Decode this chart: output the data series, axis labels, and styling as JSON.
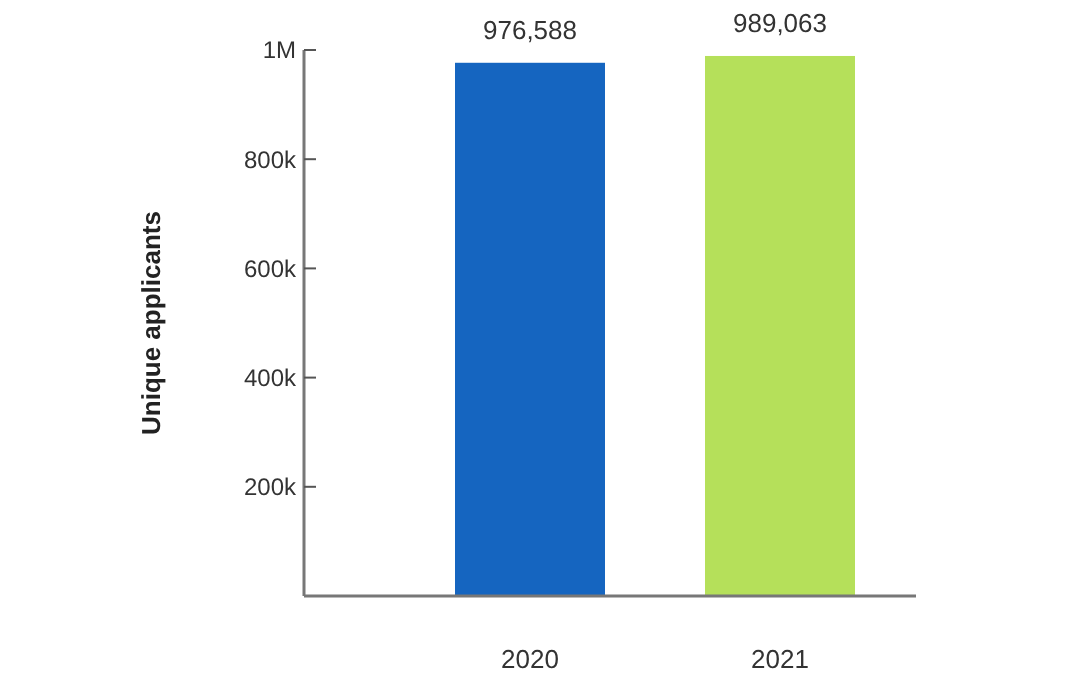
{
  "chart_data": {
    "type": "bar",
    "ylabel": "Unique applicants",
    "categories": [
      "2020",
      "2021"
    ],
    "values": [
      976588,
      989063
    ],
    "colors": [
      "#1565c0",
      "#b5e05a"
    ],
    "value_labels": [
      "976,588",
      "989,063"
    ],
    "ylim": [
      0,
      1000000
    ],
    "yticks": [
      {
        "value": 200000,
        "label": "200k"
      },
      {
        "value": 400000,
        "label": "400k"
      },
      {
        "value": 600000,
        "label": "600k"
      },
      {
        "value": 800000,
        "label": "800k"
      },
      {
        "value": 1000000,
        "label": "1M"
      }
    ],
    "grid": false
  }
}
